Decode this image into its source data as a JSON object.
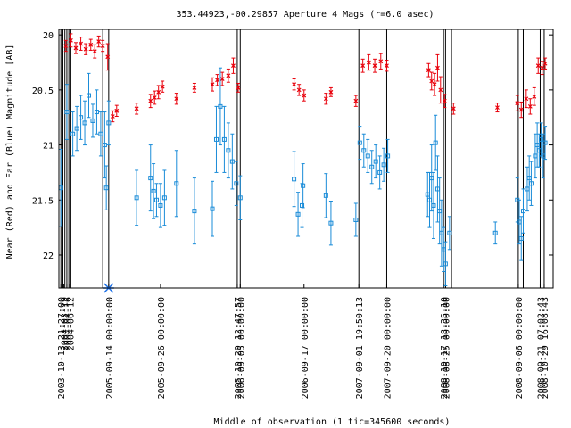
{
  "chart_data": {
    "type": "scatter",
    "title": "353.44923,-00.29857   Aperture 4 Mags (r=6.0 asec)",
    "xlabel": "Middle of observation (1 tic=345600 seconds)",
    "ylabel": "Near (Red) and Far (Blue) Magnitude [AB]",
    "ylim": [
      22.3,
      19.95
    ],
    "y_ticks": [
      "20",
      "20.5",
      "21",
      "21.5",
      "22"
    ],
    "x_tick_labels": [
      "2003-10-13 21:27:00",
      "2004-03-19",
      "2004-04-16",
      "2004-06-12",
      "2005-09-14 00:00:00",
      "2005-09-26 00:00:00",
      "2005-10-20 12:47:57",
      "2006-09-05 00:00:00",
      "2006-09-17 00:00:00",
      "2007-09-01 19:50:13",
      "2007-09-20 00:00:00",
      "2008-10-17 18:35:10",
      "2008-08-25 00:00:00",
      "2008-09-06 00:00:00",
      "2008-09-21 07:02:43",
      "2008-10-29 16:08:43"
    ],
    "colors": {
      "near": "#e8000b",
      "far": "#1a8cd8",
      "marker": "#1a6fe8"
    },
    "series": [
      {
        "name": "Near (Red)",
        "marker": "x",
        "points": [
          {
            "x": 2.5,
            "y": 20.1,
            "e": 0.05
          },
          {
            "x": 5,
            "y": 20.05,
            "e": 0.06
          },
          {
            "x": 7.5,
            "y": 20.12,
            "e": 0.05
          },
          {
            "x": 10,
            "y": 20.08,
            "e": 0.06
          },
          {
            "x": 12.5,
            "y": 20.13,
            "e": 0.05
          },
          {
            "x": 15,
            "y": 20.09,
            "e": 0.05
          },
          {
            "x": 17,
            "y": 20.15,
            "e": 0.06
          },
          {
            "x": 19,
            "y": 20.06,
            "e": 0.05
          },
          {
            "x": 21,
            "y": 20.1,
            "e": 0.05
          },
          {
            "x": 23.5,
            "y": 20.2,
            "e": 0.12
          },
          {
            "x": 26,
            "y": 20.74,
            "e": 0.05
          },
          {
            "x": 28,
            "y": 20.69,
            "e": 0.05
          },
          {
            "x": 38,
            "y": 20.67,
            "e": 0.05
          },
          {
            "x": 45,
            "y": 20.6,
            "e": 0.06
          },
          {
            "x": 47,
            "y": 20.57,
            "e": 0.06
          },
          {
            "x": 49,
            "y": 20.52,
            "e": 0.06
          },
          {
            "x": 51,
            "y": 20.47,
            "e": 0.05
          },
          {
            "x": 58,
            "y": 20.58,
            "e": 0.05
          },
          {
            "x": 67,
            "y": 20.48,
            "e": 0.04
          },
          {
            "x": 76,
            "y": 20.45,
            "e": 0.06
          },
          {
            "x": 78.5,
            "y": 20.41,
            "e": 0.05
          },
          {
            "x": 81,
            "y": 20.4,
            "e": 0.06
          },
          {
            "x": 84,
            "y": 20.37,
            "e": 0.06
          },
          {
            "x": 86.5,
            "y": 20.28,
            "e": 0.07
          },
          {
            "x": 89,
            "y": 20.48,
            "e": 0.04
          },
          {
            "x": 117,
            "y": 20.45,
            "e": 0.05
          },
          {
            "x": 119.5,
            "y": 20.5,
            "e": 0.05
          },
          {
            "x": 122,
            "y": 20.55,
            "e": 0.05
          },
          {
            "x": 133,
            "y": 20.58,
            "e": 0.05
          },
          {
            "x": 135.5,
            "y": 20.52,
            "e": 0.04
          },
          {
            "x": 148,
            "y": 20.6,
            "e": 0.05
          },
          {
            "x": 151.5,
            "y": 20.28,
            "e": 0.06
          },
          {
            "x": 154.5,
            "y": 20.25,
            "e": 0.07
          },
          {
            "x": 157.5,
            "y": 20.28,
            "e": 0.06
          },
          {
            "x": 160.5,
            "y": 20.24,
            "e": 0.07
          },
          {
            "x": 163.5,
            "y": 20.28,
            "e": 0.05
          },
          {
            "x": 184.5,
            "y": 20.32,
            "e": 0.06
          },
          {
            "x": 186,
            "y": 20.42,
            "e": 0.08
          },
          {
            "x": 187.5,
            "y": 20.45,
            "e": 0.1
          },
          {
            "x": 189,
            "y": 20.3,
            "e": 0.12
          },
          {
            "x": 190.5,
            "y": 20.5,
            "e": 0.12
          },
          {
            "x": 192.5,
            "y": 20.6,
            "e": 0.06
          },
          {
            "x": 197,
            "y": 20.67,
            "e": 0.05
          },
          {
            "x": 219,
            "y": 20.66,
            "e": 0.04
          },
          {
            "x": 229,
            "y": 20.62,
            "e": 0.07
          },
          {
            "x": 231,
            "y": 20.68,
            "e": 0.07
          },
          {
            "x": 233.5,
            "y": 20.58,
            "e": 0.08
          },
          {
            "x": 235.5,
            "y": 20.65,
            "e": 0.07
          },
          {
            "x": 237.5,
            "y": 20.56,
            "e": 0.08
          },
          {
            "x": 239.5,
            "y": 20.28,
            "e": 0.07
          },
          {
            "x": 241.5,
            "y": 20.3,
            "e": 0.06
          },
          {
            "x": 243,
            "y": 20.26,
            "e": 0.05
          }
        ]
      },
      {
        "name": "Far (Blue)",
        "marker": "square",
        "points": [
          {
            "x": 0,
            "y": 21.39,
            "e": 0.35
          },
          {
            "x": 3,
            "y": 20.7,
            "e": 0.25
          },
          {
            "x": 6,
            "y": 20.9,
            "e": 0.2
          },
          {
            "x": 8,
            "y": 20.85,
            "e": 0.2
          },
          {
            "x": 10,
            "y": 20.75,
            "e": 0.2
          },
          {
            "x": 12,
            "y": 20.8,
            "e": 0.2
          },
          {
            "x": 14,
            "y": 20.55,
            "e": 0.2
          },
          {
            "x": 16,
            "y": 20.78,
            "e": 0.15
          },
          {
            "x": 18,
            "y": 20.7,
            "e": 0.2
          },
          {
            "x": 20,
            "y": 20.9,
            "e": 0.2
          },
          {
            "x": 22,
            "y": 21.0,
            "e": 0.3
          },
          {
            "x": 22.8,
            "y": 21.39,
            "e": 0.2
          },
          {
            "x": 24,
            "y": 20.8,
            "e": 0.2
          },
          {
            "x": 38,
            "y": 21.48,
            "e": 0.25
          },
          {
            "x": 45,
            "y": 21.3,
            "e": 0.3
          },
          {
            "x": 46.5,
            "y": 21.42,
            "e": 0.25
          },
          {
            "x": 48,
            "y": 21.5,
            "e": 0.15
          },
          {
            "x": 50,
            "y": 21.55,
            "e": 0.2
          },
          {
            "x": 52,
            "y": 21.48,
            "e": 0.25
          },
          {
            "x": 58,
            "y": 21.35,
            "e": 0.3
          },
          {
            "x": 67,
            "y": 21.6,
            "e": 0.3
          },
          {
            "x": 76,
            "y": 21.58,
            "e": 0.25
          },
          {
            "x": 78,
            "y": 20.95,
            "e": 0.3
          },
          {
            "x": 80,
            "y": 20.65,
            "e": 0.35
          },
          {
            "x": 82,
            "y": 20.95,
            "e": 0.3
          },
          {
            "x": 84,
            "y": 21.05,
            "e": 0.25
          },
          {
            "x": 86,
            "y": 21.15,
            "e": 0.25
          },
          {
            "x": 88,
            "y": 21.35,
            "e": 0.2
          },
          {
            "x": 90,
            "y": 21.48,
            "e": 0.2
          },
          {
            "x": 117,
            "y": 21.31,
            "e": 0.25
          },
          {
            "x": 119,
            "y": 21.63,
            "e": 0.2
          },
          {
            "x": 121,
            "y": 21.55,
            "e": 0.2
          },
          {
            "x": 121.5,
            "y": 21.37,
            "e": 0.2
          },
          {
            "x": 133,
            "y": 21.46,
            "e": 0.2
          },
          {
            "x": 135.5,
            "y": 21.71,
            "e": 0.2
          },
          {
            "x": 148,
            "y": 21.68,
            "e": 0.15
          },
          {
            "x": 150,
            "y": 20.98,
            "e": 0.15
          },
          {
            "x": 152,
            "y": 21.05,
            "e": 0.15
          },
          {
            "x": 154,
            "y": 21.1,
            "e": 0.15
          },
          {
            "x": 156,
            "y": 21.2,
            "e": 0.15
          },
          {
            "x": 158,
            "y": 21.15,
            "e": 0.15
          },
          {
            "x": 160,
            "y": 21.25,
            "e": 0.15
          },
          {
            "x": 162,
            "y": 21.18,
            "e": 0.15
          },
          {
            "x": 164,
            "y": 21.1,
            "e": 0.15
          },
          {
            "x": 184,
            "y": 21.45,
            "e": 0.2
          },
          {
            "x": 185,
            "y": 21.5,
            "e": 0.25
          },
          {
            "x": 186,
            "y": 21.3,
            "e": 0.3
          },
          {
            "x": 187,
            "y": 21.55,
            "e": 0.3
          },
          {
            "x": 188,
            "y": 20.98,
            "e": 0.25
          },
          {
            "x": 189,
            "y": 21.4,
            "e": 0.3
          },
          {
            "x": 190,
            "y": 21.6,
            "e": 0.3
          },
          {
            "x": 191,
            "y": 21.8,
            "e": 0.3
          },
          {
            "x": 192,
            "y": 21.95,
            "e": 0.2
          },
          {
            "x": 193,
            "y": 22.08,
            "e": 0.2
          },
          {
            "x": 195,
            "y": 21.8,
            "e": 0.15
          },
          {
            "x": 218,
            "y": 21.8,
            "e": 0.1
          },
          {
            "x": 229,
            "y": 21.5,
            "e": 0.2
          },
          {
            "x": 230,
            "y": 21.7,
            "e": 0.2
          },
          {
            "x": 231,
            "y": 21.85,
            "e": 0.2
          },
          {
            "x": 232,
            "y": 21.6,
            "e": 0.2
          },
          {
            "x": 234,
            "y": 21.4,
            "e": 0.2
          },
          {
            "x": 235,
            "y": 21.3,
            "e": 0.2
          },
          {
            "x": 236,
            "y": 21.35,
            "e": 0.2
          },
          {
            "x": 238,
            "y": 21.1,
            "e": 0.2
          },
          {
            "x": 239,
            "y": 21.0,
            "e": 0.2
          },
          {
            "x": 240,
            "y": 21.05,
            "e": 0.15
          },
          {
            "x": 241,
            "y": 20.95,
            "e": 0.15
          },
          {
            "x": 242,
            "y": 21.1,
            "e": 0.2
          },
          {
            "x": 243,
            "y": 20.98,
            "e": 0.15
          }
        ]
      }
    ],
    "x_range": [
      -1,
      247
    ],
    "vertical_lines_x": [
      0,
      1,
      2,
      3,
      4,
      5,
      21,
      24,
      88.5,
      90,
      149.5,
      163.5,
      192,
      193,
      196,
      229.5,
      232,
      240.5,
      242.5
    ],
    "x_tick_positions": [
      0,
      1.5,
      3,
      4.5,
      24,
      50,
      88.5,
      90,
      122,
      149.5,
      163.5,
      192,
      193,
      229.5,
      240.5,
      242.5
    ],
    "special_marker": {
      "x": 24,
      "label": ""
    }
  }
}
